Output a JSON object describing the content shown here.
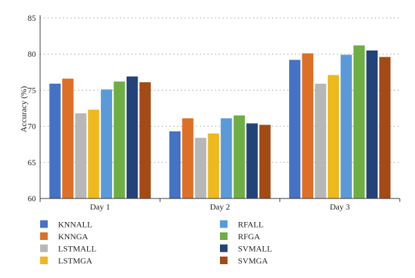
{
  "chart_data": {
    "type": "bar",
    "title": "",
    "xlabel": "",
    "ylabel": "Accuracy (%)",
    "ylim": [
      60,
      85
    ],
    "yticks": [
      60,
      65,
      70,
      75,
      80,
      85
    ],
    "grid": true,
    "legend_position": "bottom",
    "categories": [
      "Day 1",
      "Day 2",
      "Day 3"
    ],
    "series": [
      {
        "name": "KNNALL",
        "color": "#4472c4",
        "values": [
          75.9,
          69.3,
          79.2
        ]
      },
      {
        "name": "KNNGA",
        "color": "#dd7026",
        "values": [
          76.6,
          71.1,
          80.1
        ]
      },
      {
        "name": "LSTMALL",
        "color": "#b7b7b7",
        "values": [
          71.8,
          68.4,
          75.9
        ]
      },
      {
        "name": "LSTMGA",
        "color": "#edb91c",
        "values": [
          72.3,
          69.0,
          77.1
        ]
      },
      {
        "name": "RFALL",
        "color": "#5b9ad8",
        "values": [
          75.1,
          71.1,
          79.9
        ]
      },
      {
        "name": "RFGA",
        "color": "#6fae44",
        "values": [
          76.2,
          71.5,
          81.2
        ]
      },
      {
        "name": "SVMALL",
        "color": "#22437a",
        "values": [
          76.9,
          70.4,
          80.5
        ]
      },
      {
        "name": "SVMGA",
        "color": "#a44a14",
        "values": [
          76.1,
          70.2,
          79.6
        ]
      }
    ]
  }
}
